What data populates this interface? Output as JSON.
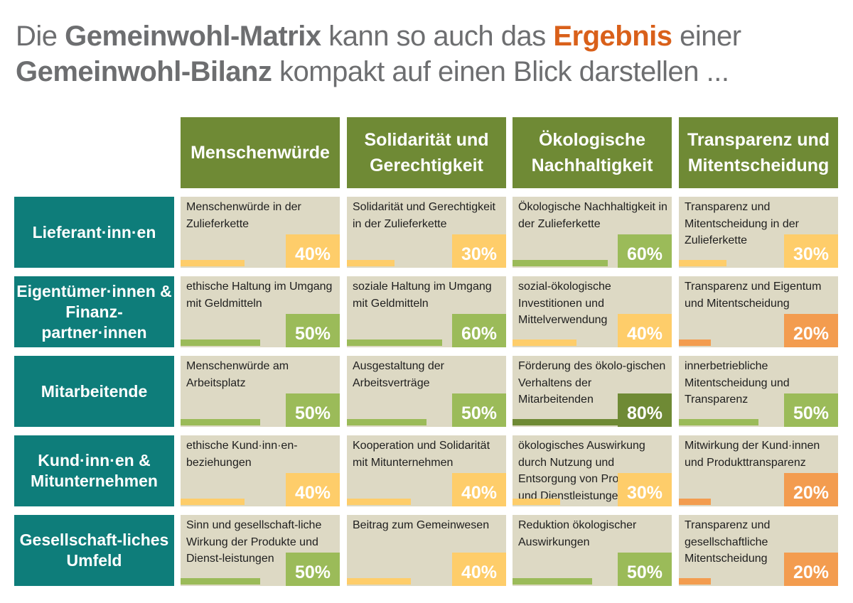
{
  "title": {
    "p1": "Die ",
    "b1": "Gemeinwohl-Matrix",
    "p2": " kann so auch das ",
    "accent": "Ergebnis",
    "p3": " einer",
    "b2": "Gemeinwohl-Bilanz",
    "p4": " kompakt auf einen Blick darstellen ..."
  },
  "colors": {
    "header": "#6f8a35",
    "row": "#0e7d7a",
    "cell": "#ddd9c4",
    "low": "#f39c4f",
    "mid": "#fecd6a",
    "good": "#9bbb59",
    "high": "#6f8a35",
    "accent": "#d9601a"
  },
  "columns": [
    "Menschenwürde",
    "Solidarität und Gerechtigkeit",
    "Ökologische Nachhaltigkeit",
    "Transparenz und Mitentscheidung"
  ],
  "rows": [
    {
      "label": "Lieferant·inn·en",
      "cells": [
        {
          "text": "Menschenwürde in der Zulieferkette",
          "pct": 40
        },
        {
          "text": "Solidarität und Gerechtigkeit in der Zulieferkette",
          "pct": 30
        },
        {
          "text": "Ökologische Nachhaltigkeit in der Zulieferkette",
          "pct": 60
        },
        {
          "text": "Transparenz und Mitentscheidung in der Zulieferkette",
          "pct": 30
        }
      ]
    },
    {
      "label": "Eigentümer·innen & Finanz-partner·innen",
      "cells": [
        {
          "text": "ethische Haltung im Umgang mit Geldmitteln",
          "pct": 50
        },
        {
          "text": "soziale Haltung im Umgang mit Geldmitteln",
          "pct": 60
        },
        {
          "text": "sozial-ökologische Investitionen und Mittelverwendung",
          "pct": 40
        },
        {
          "text": "Transparenz und Eigentum und Mitentscheidung",
          "pct": 20
        }
      ]
    },
    {
      "label": "Mitarbeitende",
      "cells": [
        {
          "text": "Menschenwürde am Arbeitsplatz",
          "pct": 50
        },
        {
          "text": "Ausgestaltung der Arbeitsverträge",
          "pct": 50
        },
        {
          "text": "Förderung des ökolo-gischen Verhaltens der Mitarbeitenden",
          "pct": 80
        },
        {
          "text": "innerbetriebliche Mitentscheidung und Transparenz",
          "pct": 50
        }
      ]
    },
    {
      "label": "Kund·inn·en & Mitunternehmen",
      "cells": [
        {
          "text": "ethische Kund·inn·en-beziehungen",
          "pct": 40
        },
        {
          "text": "Kooperation und Solidarität mit Mitunternehmen",
          "pct": 40
        },
        {
          "text": "ökologisches Auswirkung durch Nutzung und Entsorgung von Produkten und Dienstleistungen",
          "pct": 30
        },
        {
          "text": "Mitwirkung der Kund·innen und Produkttransparenz",
          "pct": 20
        }
      ]
    },
    {
      "label": "Gesellschaft-liches Umfeld",
      "cells": [
        {
          "text": "Sinn und gesellschaft-liche Wirkung der Produkte und Dienst-leistungen",
          "pct": 50
        },
        {
          "text": "Beitrag zum Gemeinwesen",
          "pct": 40
        },
        {
          "text": "Reduktion ökologischer Auswirkungen",
          "pct": 50
        },
        {
          "text": "Transparenz und gesellschaftliche Mitentscheidung",
          "pct": 20
        }
      ]
    }
  ]
}
